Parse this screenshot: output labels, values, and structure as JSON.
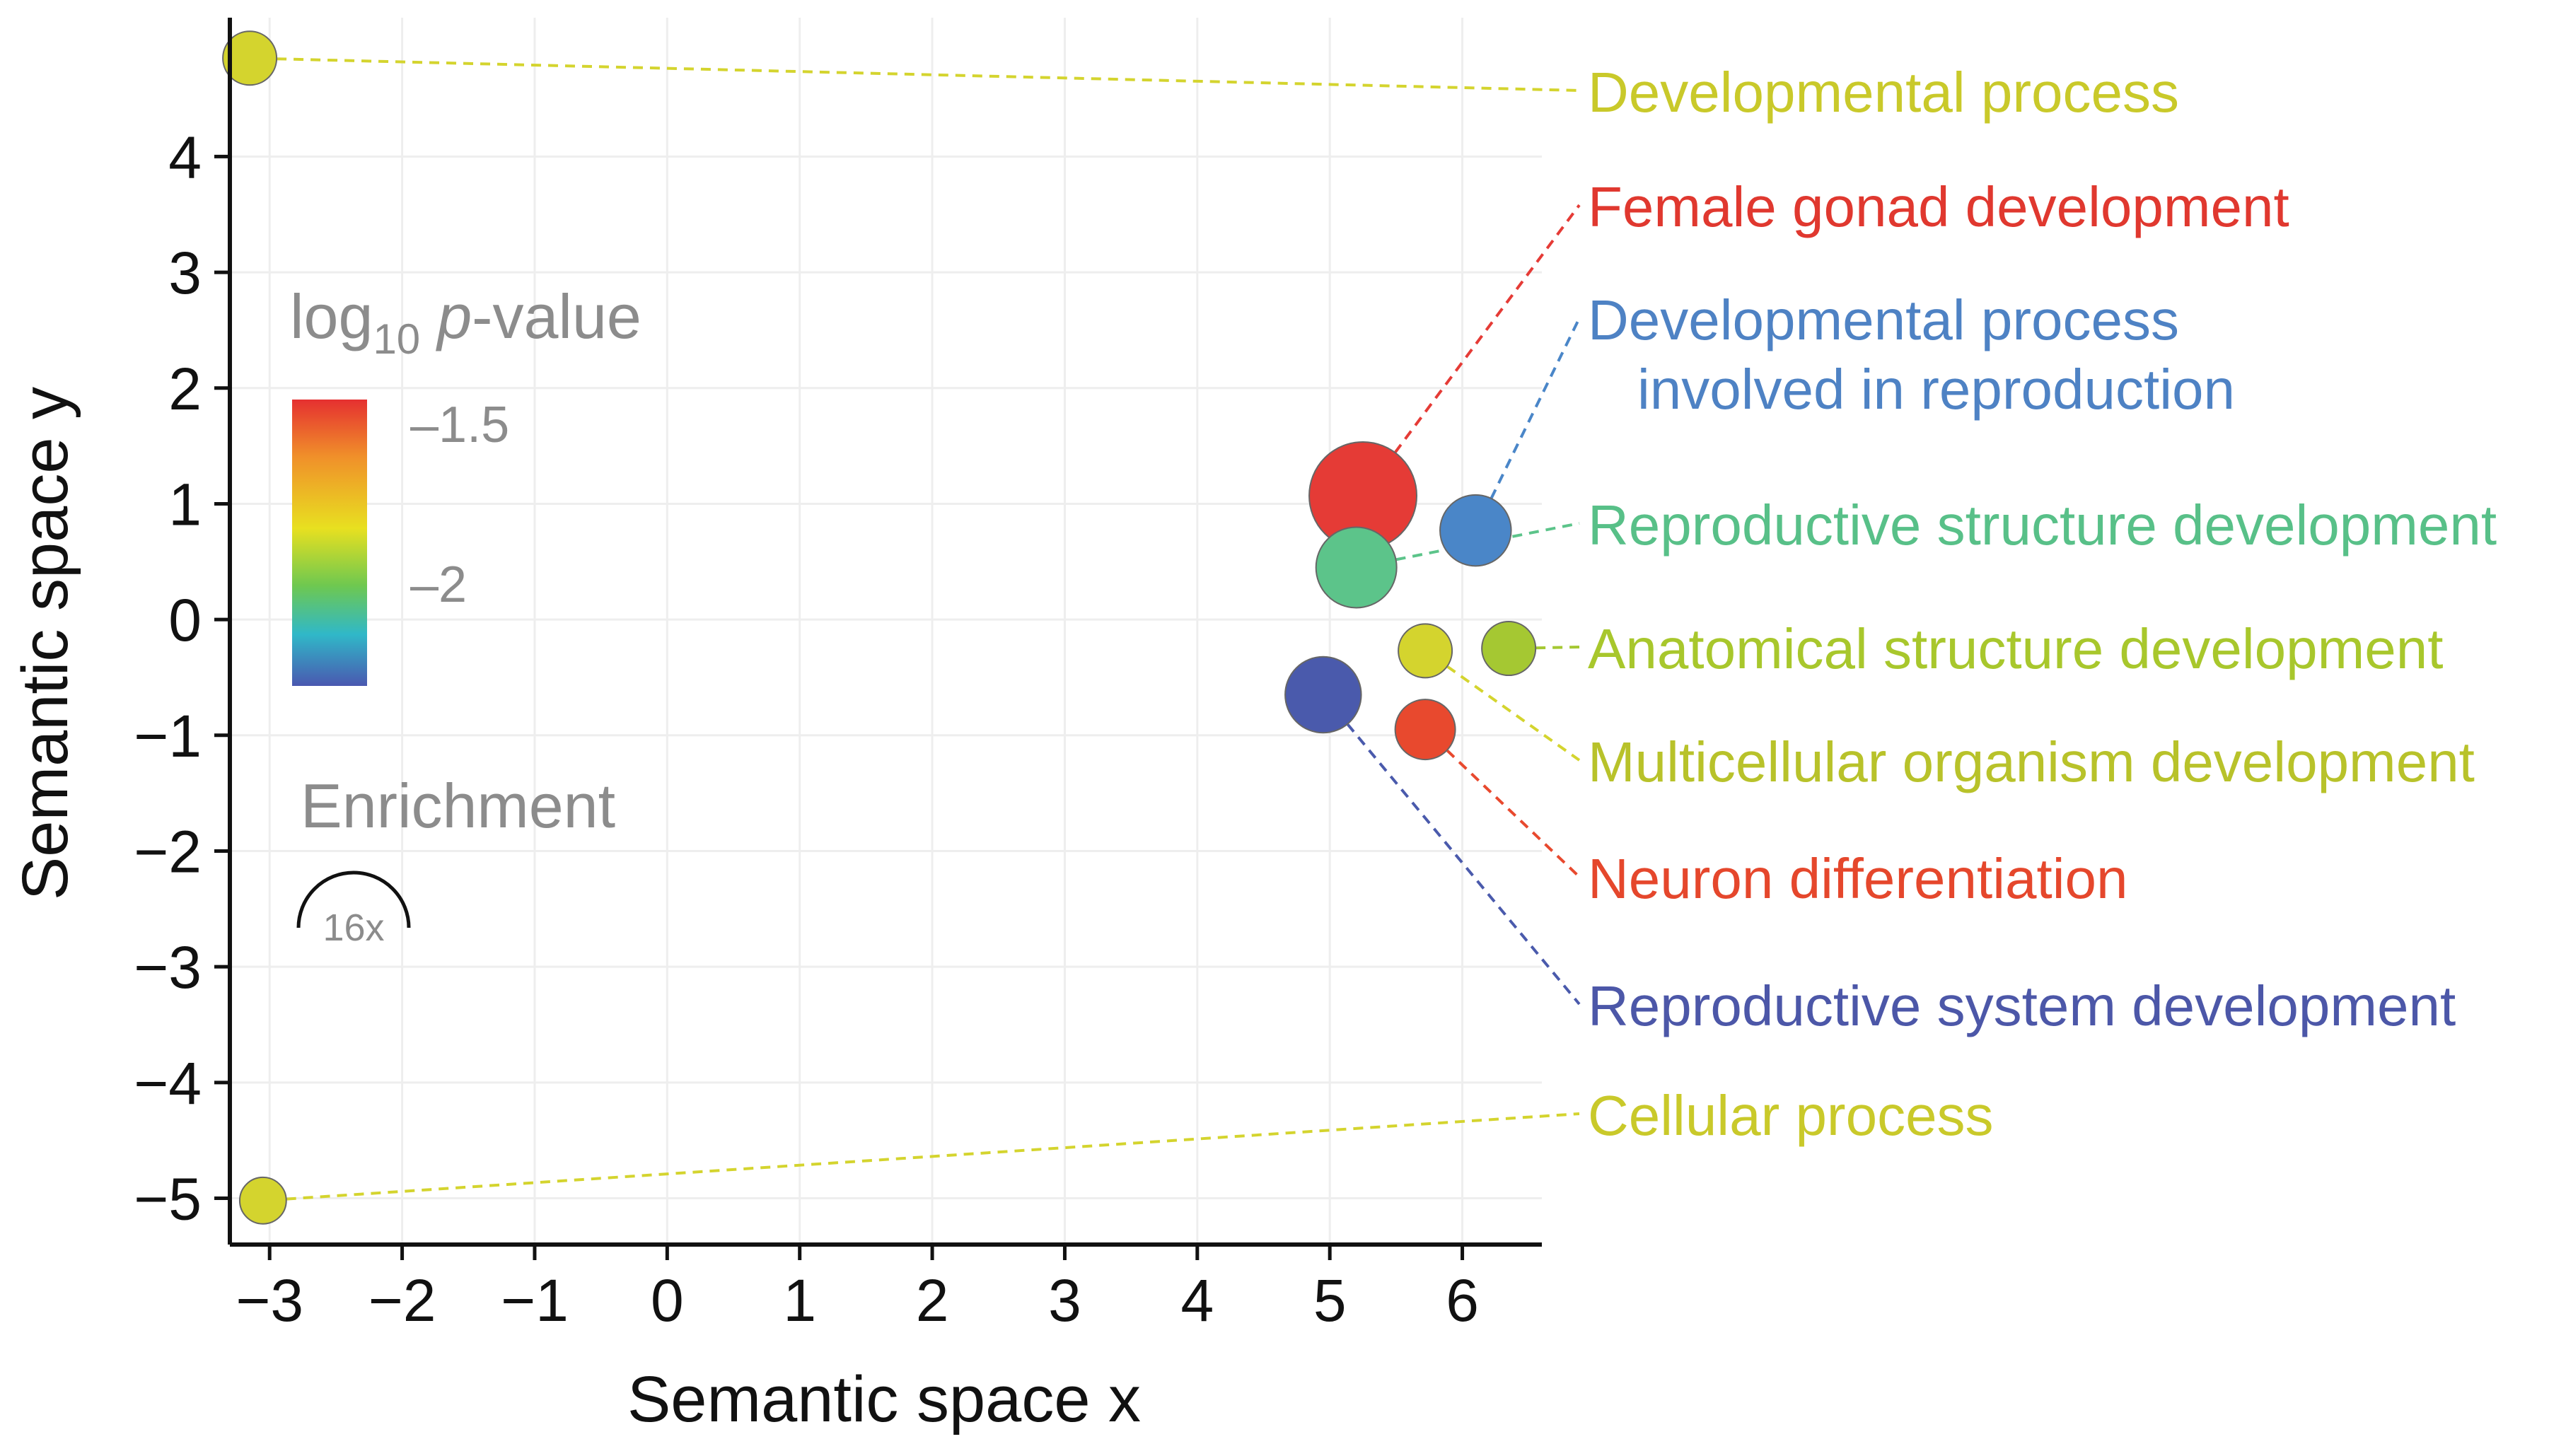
{
  "chart_data": {
    "type": "scatter",
    "title": "",
    "xlabel": "Semantic space x",
    "ylabel": "Semantic space y",
    "xlim": [
      -3.3,
      6.6
    ],
    "ylim": [
      -5.4,
      5.2
    ],
    "x_ticks": [
      -3,
      -2,
      -1,
      0,
      1,
      2,
      3,
      4,
      5,
      6
    ],
    "y_ticks": [
      -5,
      -4,
      -3,
      -2,
      -1,
      0,
      1,
      2,
      3,
      4
    ],
    "grid": true,
    "legend": {
      "color_title_main": "log",
      "color_title_sub": "10",
      "color_title_p": "p",
      "color_title_rest": "-value",
      "color_ticks": [
        {
          "label": "–1.5",
          "value": -1.5
        },
        {
          "label": "–2",
          "value": -2
        }
      ],
      "size_title": "Enrichment",
      "size_label": "16x",
      "placement": "left"
    },
    "points": [
      {
        "label": "Developmental process",
        "x": -3.15,
        "y": 4.85,
        "enrichment": 4,
        "color": "#d4d42e",
        "label_color": "#c9c92a"
      },
      {
        "label": "Female gonad development",
        "x": 5.25,
        "y": 1.07,
        "enrichment": 16,
        "color": "#e53b36",
        "label_color": "#e0382f"
      },
      {
        "label": "Developmental process\ninvolved in reproduction",
        "x": 6.1,
        "y": 0.77,
        "enrichment": 7,
        "color": "#4a86c8",
        "label_color": "#4e82c4"
      },
      {
        "label": "Reproductive structure development",
        "x": 5.2,
        "y": 0.45,
        "enrichment": 9,
        "color": "#5cc48a",
        "label_color": "#58c088"
      },
      {
        "label": "Anatomical structure development",
        "x": 6.35,
        "y": -0.25,
        "enrichment": 4,
        "color": "#a5c832",
        "label_color": "#a8c72c"
      },
      {
        "label": "Multicellular organism development",
        "x": 5.72,
        "y": -0.27,
        "enrichment": 4,
        "color": "#d4d42e",
        "label_color": "#b8c22a"
      },
      {
        "label": "Neuron differentiation",
        "x": 5.72,
        "y": -0.95,
        "enrichment": 5,
        "color": "#e8492e",
        "label_color": "#e5472c"
      },
      {
        "label": "Reproductive system development",
        "x": 4.95,
        "y": -0.65,
        "enrichment": 8,
        "color": "#4a5aac",
        "label_color": "#4c57a8"
      },
      {
        "label": "Cellular process",
        "x": -3.05,
        "y": -5.02,
        "enrichment": 3,
        "color": "#d4d42e",
        "label_color": "#c9c92a"
      }
    ]
  }
}
